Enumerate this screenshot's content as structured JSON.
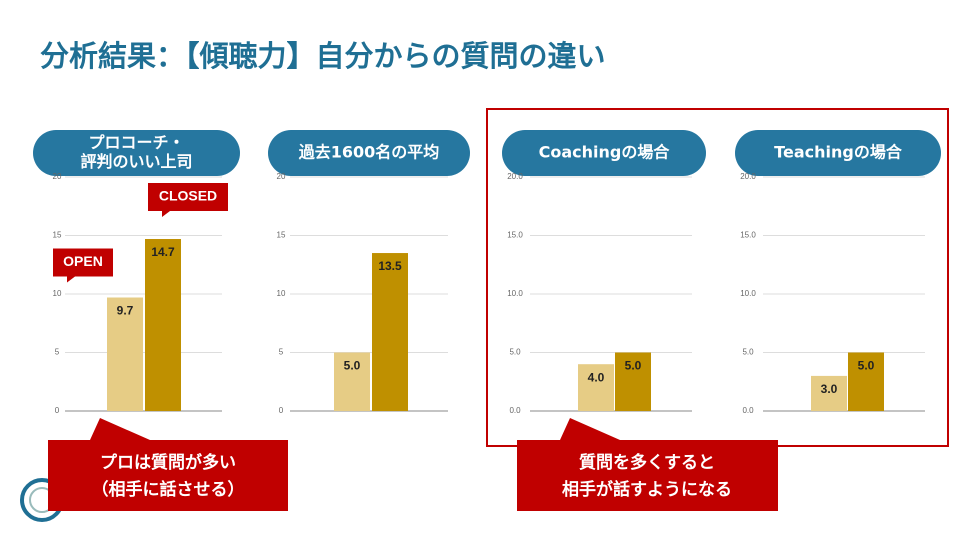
{
  "title": "分析結果：【傾聴力】自分からの質問の違い",
  "callouts": [
    {
      "lines": [
        "プロは質問が多い",
        "（相手に話させる）"
      ]
    },
    {
      "lines": [
        "質問を多くすると",
        "相手が話すようになる"
      ]
    }
  ],
  "chart_data": [
    {
      "type": "bar",
      "title_lines": [
        "プロコーチ・",
        "評判のいい上司"
      ],
      "categories": [
        "OPEN",
        "CLOSED"
      ],
      "values": [
        9.7,
        14.7
      ],
      "colors": [
        "#e6cc85",
        "#bf9000"
      ],
      "ylim": [
        0,
        20
      ],
      "yticks": [
        0,
        5,
        10,
        15,
        20
      ],
      "grid": true
    },
    {
      "type": "bar",
      "title_lines": [
        "過去1600名の平均"
      ],
      "categories": [
        null,
        null
      ],
      "values": [
        5,
        13.5
      ],
      "value_labels": [
        "5.0",
        "13.5"
      ],
      "colors": [
        "#e6cc85",
        "#bf9000"
      ],
      "ylim": [
        0,
        20
      ],
      "yticks": [
        0,
        5,
        10,
        15,
        20
      ],
      "grid": true
    },
    {
      "type": "bar",
      "title_lines": [
        "Coachingの場合"
      ],
      "categories": [
        null,
        null
      ],
      "values": [
        4,
        5
      ],
      "value_labels": [
        "4.0",
        "5.0"
      ],
      "colors": [
        "#e6cc85",
        "#bf9000"
      ],
      "ylim": [
        0,
        20
      ],
      "yticks": [
        {
          "value": 0,
          "label": "0.0"
        },
        {
          "value": 5,
          "label": "5.0"
        },
        {
          "value": 10,
          "label": "10.0"
        },
        {
          "value": 15,
          "label": "15.0"
        },
        {
          "value": 20,
          "label": "20.0"
        }
      ],
      "grid": true
    },
    {
      "type": "bar",
      "title_lines": [
        "Teachingの場合"
      ],
      "categories": [
        null,
        null
      ],
      "values": [
        3,
        5
      ],
      "value_labels": [
        "3.0",
        "5.0"
      ],
      "colors": [
        "#e6cc85",
        "#bf9000"
      ],
      "ylim": [
        0,
        20
      ],
      "yticks": [
        {
          "value": 0,
          "label": "0.0"
        },
        {
          "value": 5,
          "label": "5.0"
        },
        {
          "value": 10,
          "label": "10.0"
        },
        {
          "value": 15,
          "label": "15.0"
        },
        {
          "value": 20,
          "label": "20.0"
        }
      ],
      "grid": true
    }
  ]
}
